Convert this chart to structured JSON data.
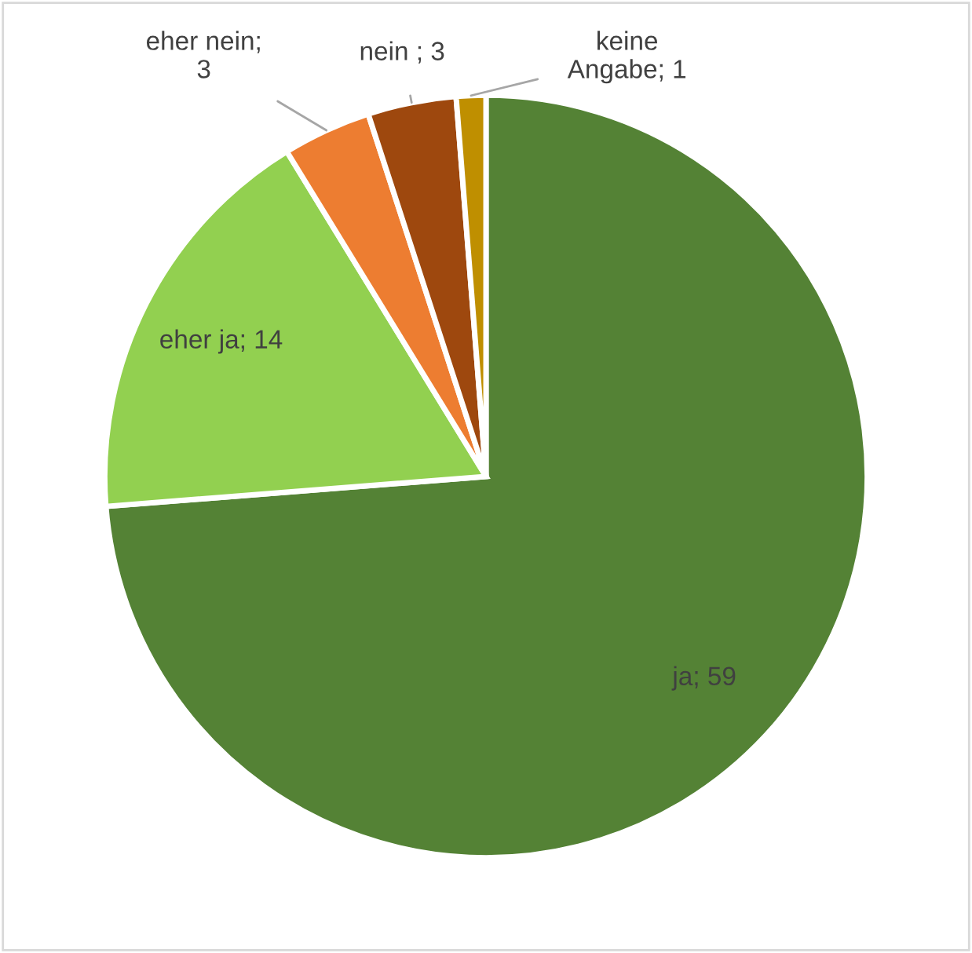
{
  "chart_data": {
    "type": "pie",
    "categories": [
      null,
      null,
      null,
      null,
      null
    ],
    "values": [
      59,
      14,
      3,
      3,
      1
    ],
    "colors": [
      "#548235",
      "#92d050",
      "#ed7d31",
      "#9e480e",
      "#bf8f00"
    ],
    "value_labels": [
      "ja; 59",
      "eher ja; 14",
      "eher nein; 3",
      "nein ; 3",
      "keine Angabe; 1"
    ]
  }
}
